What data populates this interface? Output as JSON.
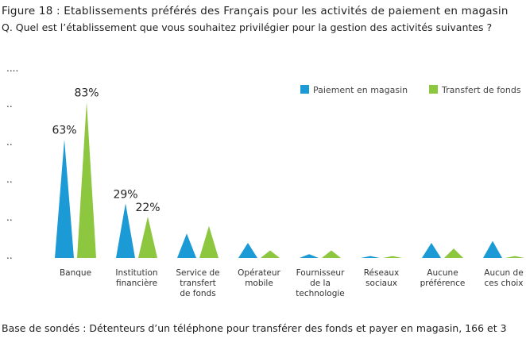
{
  "title": "Figure 18 : Etablissements préférés des Français pour les activités de paiement en magasin",
  "question": "Q. Quel est l’établissement que vous souhaitez privilégier pour la gestion des activités suivantes ?",
  "footer": "Base de sondés : Détenteurs d’un téléphone pour transférer des fonds et payer en magasin, 166 et 3",
  "colors": {
    "series1": "#1b9ad6",
    "series2": "#8dc63f"
  },
  "chart_data": {
    "type": "bar",
    "title": "",
    "xlabel": "",
    "ylabel": "",
    "ylim": [
      0,
      100
    ],
    "y_tick_labels": [
      "..",
      "..",
      "..",
      "..",
      "..",
      "...."
    ],
    "categories": [
      [
        "Banque"
      ],
      [
        "Institution",
        "financière"
      ],
      [
        "Service de",
        "transfert",
        "de fonds"
      ],
      [
        "Opérateur",
        "mobile"
      ],
      [
        "Fournisseur",
        "de la",
        "technologie"
      ],
      [
        "Réseaux",
        "sociaux"
      ],
      [
        "Aucune",
        "préférence"
      ],
      [
        "Aucun de",
        "ces choix"
      ]
    ],
    "series": [
      {
        "name": "Paiement en magasin",
        "values": [
          63,
          29,
          13,
          8,
          2,
          1,
          8,
          9
        ],
        "labels": [
          "63%",
          "29%",
          "",
          "",
          "",
          "",
          "",
          ""
        ]
      },
      {
        "name": "Transfert de fonds",
        "values": [
          83,
          22,
          17,
          4,
          4,
          1,
          5,
          1
        ],
        "labels": [
          "83%",
          "22%",
          "",
          "",
          "",
          "",
          "",
          ""
        ]
      }
    ],
    "legend_position": "top-right",
    "grid": false
  }
}
